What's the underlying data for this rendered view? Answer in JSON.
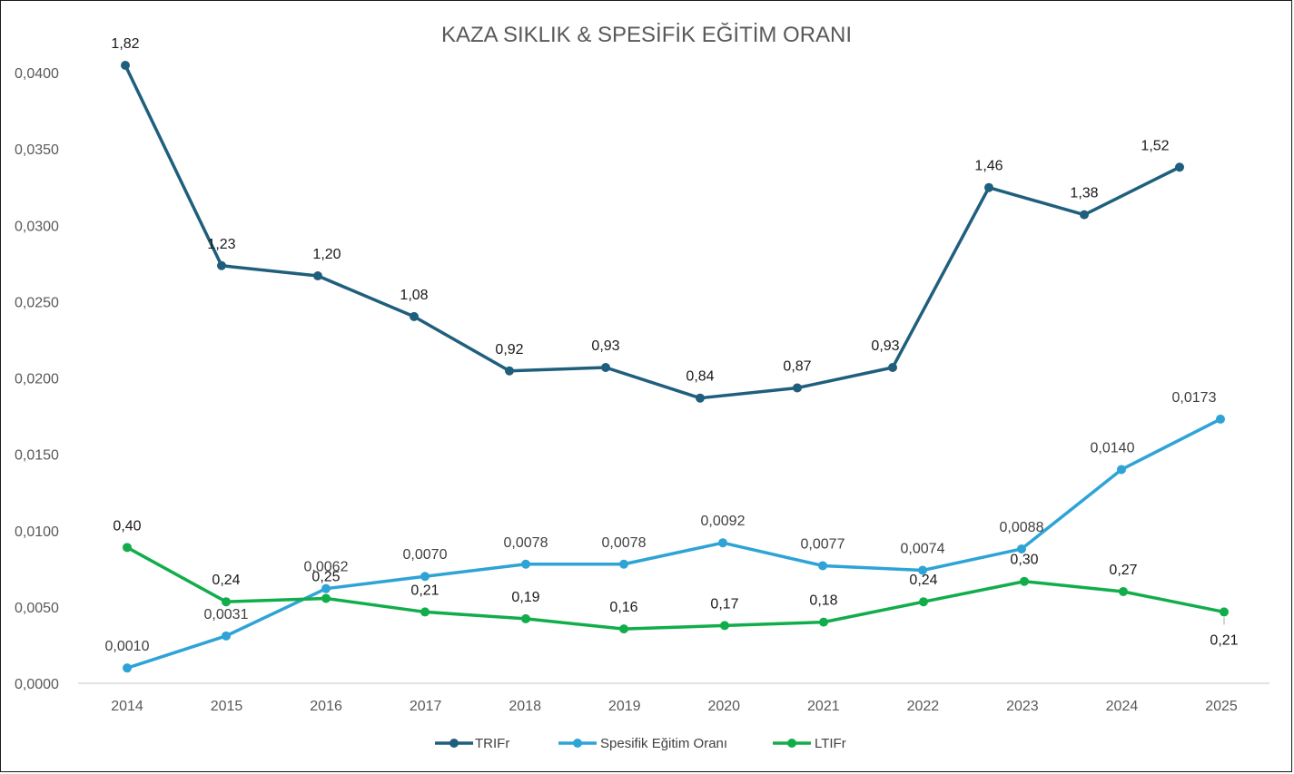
{
  "colors": {
    "trifr": "#1f5f7d",
    "egitim": "#2ea3d6",
    "ltifr": "#12ad4b",
    "axis": "#d9d9d9",
    "tick_text": "#595959"
  },
  "chart_data": {
    "type": "line",
    "title": "KAZA SIKLIK & SPESİFİK EĞİTİM ORANI",
    "categories": [
      "2014",
      "2015",
      "2016",
      "2017",
      "2018",
      "2019",
      "2020",
      "2021",
      "2022",
      "2023",
      "2024",
      "2025"
    ],
    "y_ticks": [
      "0,0000",
      "0,0050",
      "0,0100",
      "0,0150",
      "0,0200",
      "0,0250",
      "0,0300",
      "0,0350",
      "0,0400"
    ],
    "ylim": [
      0,
      0.04
    ],
    "grid": false,
    "legend_position": "bottom",
    "series": [
      {
        "name": "TRIFr",
        "key": "trifr",
        "axis": "secondary",
        "values": [
          1.82,
          1.23,
          1.2,
          1.08,
          0.92,
          0.93,
          0.84,
          0.87,
          0.93,
          1.46,
          1.38,
          1.52
        ],
        "labels": [
          "1,82",
          "1,23",
          "1,20",
          "1,08",
          "0,92",
          "0,93",
          "0,84",
          "0,87",
          "0,93",
          "1,46",
          "1,38",
          "1,52"
        ],
        "label_position": "above"
      },
      {
        "name": "Spesifik Eğitim Oranı",
        "key": "egitim",
        "axis": "primary",
        "values": [
          0.001,
          0.0031,
          0.0062,
          0.007,
          0.0078,
          0.0078,
          0.0092,
          0.0077,
          0.0074,
          0.0088,
          0.014,
          0.0173
        ],
        "labels": [
          "0,0010",
          "0,0031",
          "0,0062",
          "0,0070",
          "0,0078",
          "0,0078",
          "0,0092",
          "0,0077",
          "0,0074",
          "0,0088",
          "0,0140",
          "0,0173"
        ],
        "label_position": "above"
      },
      {
        "name": "LTIFr",
        "key": "ltifr",
        "axis": "secondary",
        "values": [
          0.4,
          0.24,
          0.25,
          0.21,
          0.19,
          0.16,
          0.17,
          0.18,
          0.24,
          0.3,
          0.27,
          0.21
        ],
        "labels": [
          "0,40",
          "0,24",
          "0,25",
          "0,21",
          "0,19",
          "0,16",
          "0,17",
          "0,18",
          "0,24",
          "0,30",
          "0,27",
          "0,21"
        ],
        "label_position": "above"
      }
    ]
  }
}
